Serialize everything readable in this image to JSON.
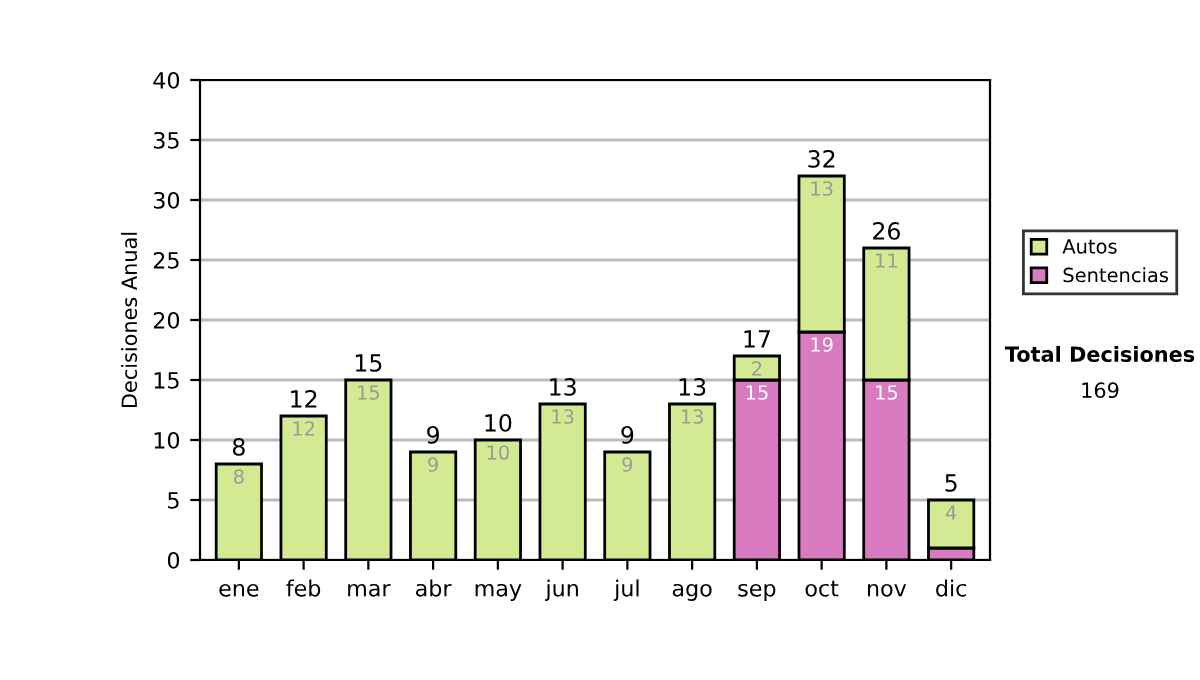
{
  "chart_data": {
    "type": "bar",
    "stacked": true,
    "ylabel": "Decisiones Anual",
    "categories": [
      "ene",
      "feb",
      "mar",
      "abr",
      "may",
      "jun",
      "jul",
      "ago",
      "sep",
      "oct",
      "nov",
      "dic"
    ],
    "series": [
      {
        "name": "Sentencias",
        "color": "#d97bc0",
        "values": [
          0,
          0,
          0,
          0,
          0,
          0,
          0,
          0,
          15,
          19,
          15,
          1
        ],
        "value_labels": [
          null,
          null,
          null,
          null,
          null,
          null,
          null,
          null,
          "15",
          "19",
          "15",
          null
        ]
      },
      {
        "name": "Autos",
        "color": "#d4ea92",
        "values": [
          8,
          12,
          15,
          9,
          10,
          13,
          9,
          13,
          2,
          13,
          11,
          4
        ],
        "value_labels": [
          "8",
          "12",
          "15",
          "9",
          "10",
          "13",
          "9",
          "13",
          "2",
          "13",
          "11",
          "4"
        ]
      }
    ],
    "totals": [
      "8",
      "12",
      "15",
      "9",
      "10",
      "13",
      "9",
      "13",
      "17",
      "32",
      "26",
      "5"
    ],
    "ylim": [
      0,
      40
    ],
    "yticks": [
      0,
      5,
      10,
      15,
      20,
      25,
      30,
      35,
      40
    ],
    "grid": "y",
    "legend": "right",
    "annotations": [
      "Total Decisiones",
      "169"
    ]
  }
}
